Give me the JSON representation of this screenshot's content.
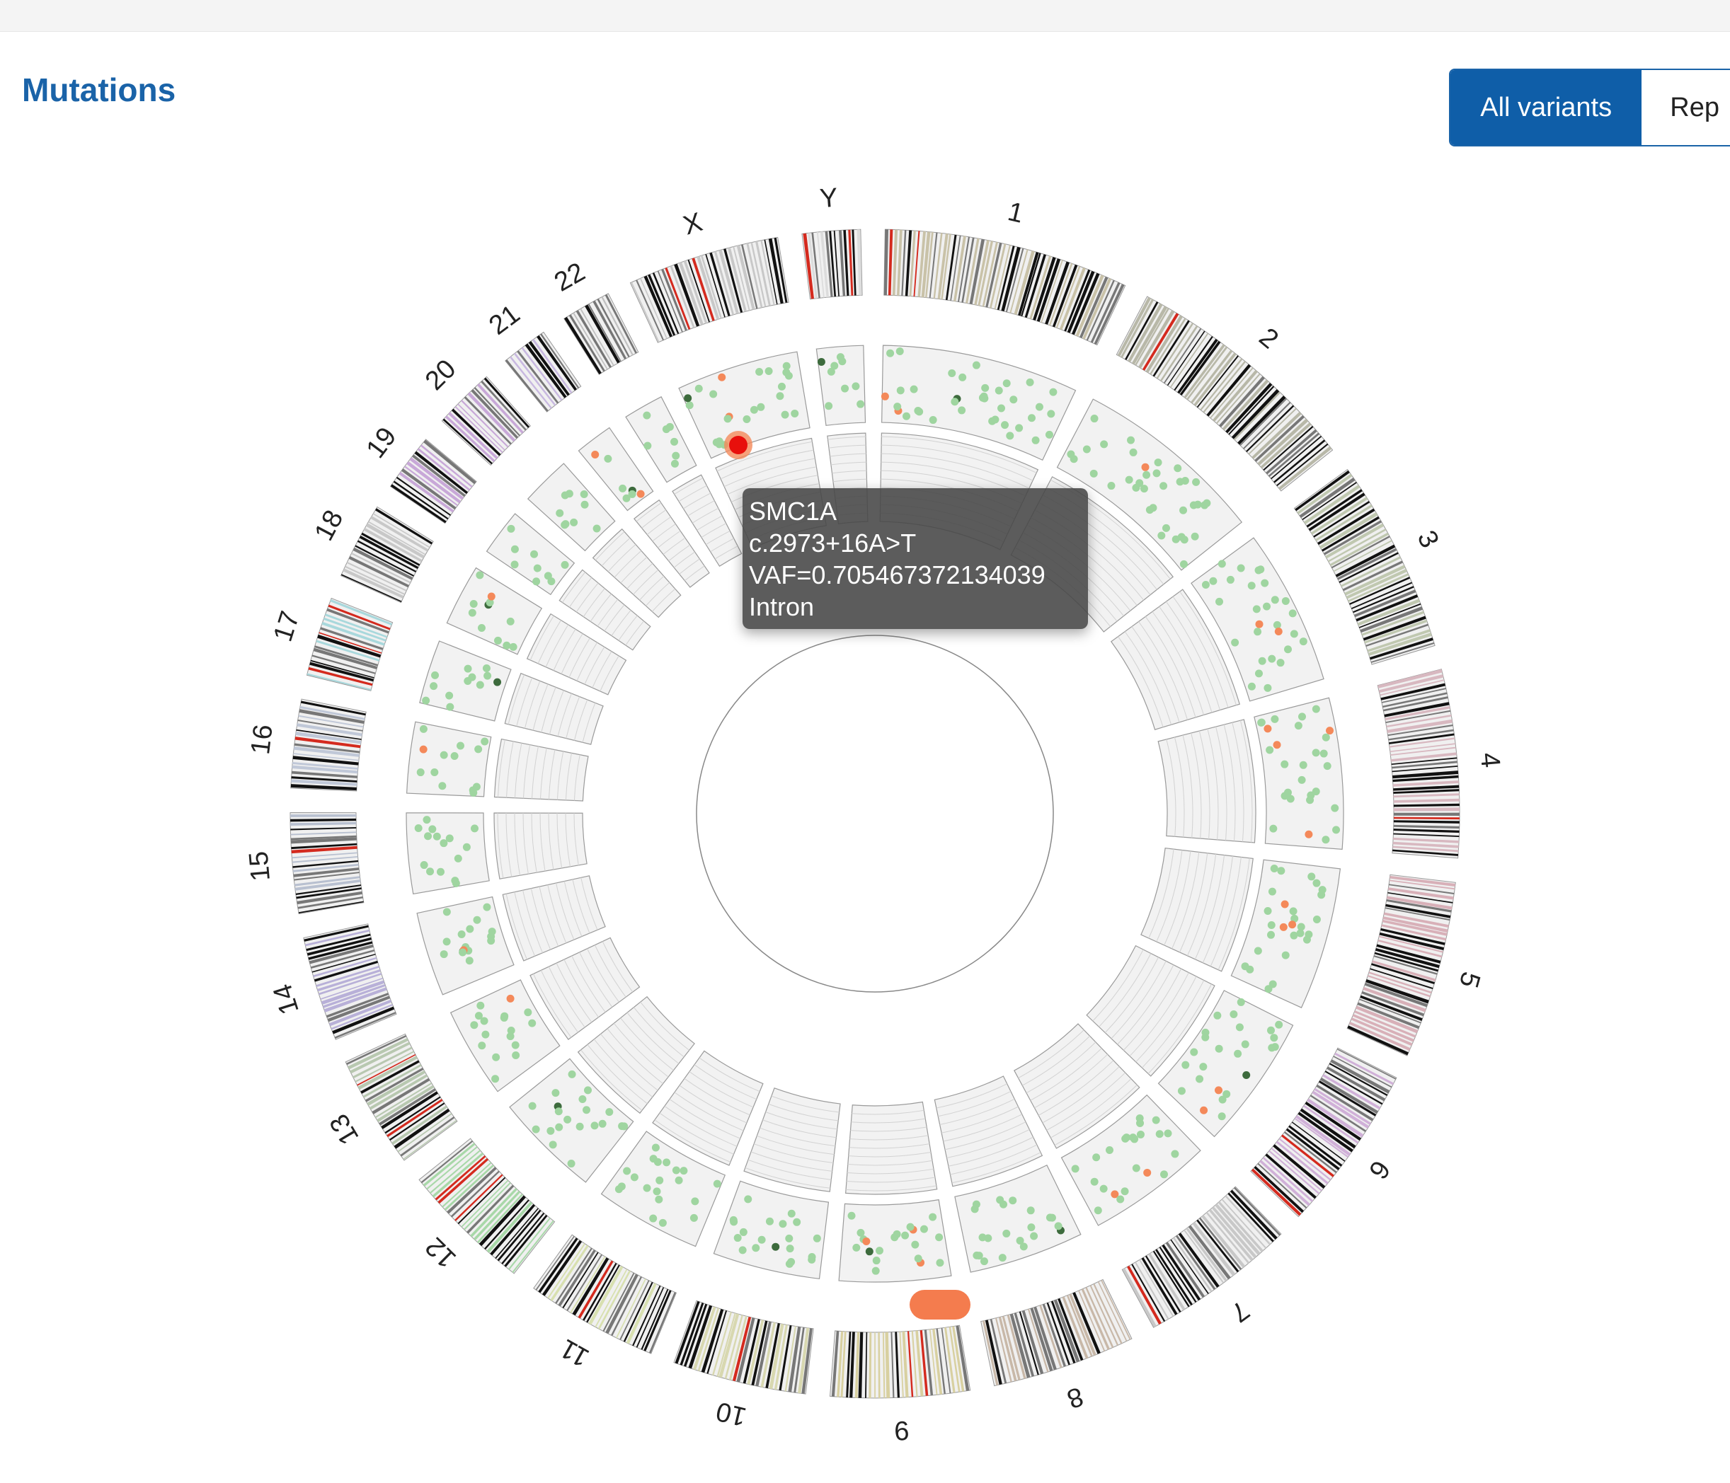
{
  "header": {
    "title": "Mutations"
  },
  "toggle": {
    "buttons": [
      "All variants",
      "Rep"
    ]
  },
  "circos": {
    "chromosomes": [
      "1",
      "2",
      "3",
      "4",
      "5",
      "6",
      "7",
      "8",
      "9",
      "10",
      "11",
      "12",
      "13",
      "14",
      "15",
      "16",
      "17",
      "18",
      "19",
      "20",
      "21",
      "22",
      "X",
      "Y"
    ]
  },
  "tooltip": {
    "lines": [
      "SMC1A",
      "c.2973+16A>T",
      "VAF=0.705467372134039",
      "Intron"
    ]
  }
}
